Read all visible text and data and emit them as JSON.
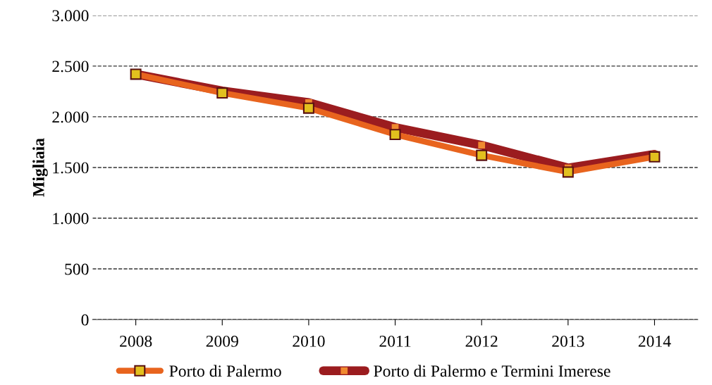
{
  "chart_data": {
    "type": "line",
    "ylabel": "Migliaia",
    "categories": [
      "2008",
      "2009",
      "2010",
      "2011",
      "2012",
      "2013",
      "2014"
    ],
    "series": [
      {
        "name": "Porto di Palermo",
        "color": "#e8641e",
        "values": [
          2420,
          2235,
          2085,
          1825,
          1620,
          1455,
          1605
        ]
      },
      {
        "name": "Porto di Palermo e Termini Imerese",
        "color": "#9b1c1f",
        "values": [
          2420,
          2255,
          2140,
          1895,
          1720,
          1495,
          1630
        ]
      }
    ],
    "ylim": [
      0,
      3000
    ],
    "yticks": [
      {
        "value": 0,
        "label": "0"
      },
      {
        "value": 500,
        "label": "500"
      },
      {
        "value": 1000,
        "label": "1.000"
      },
      {
        "value": 1500,
        "label": "1.500"
      },
      {
        "value": 2000,
        "label": "2.000"
      },
      {
        "value": 2500,
        "label": "2.500"
      },
      {
        "value": 3000,
        "label": "3.000"
      }
    ],
    "grid": "y",
    "legend": "bottom",
    "marker": "square",
    "line_style": "solid"
  }
}
